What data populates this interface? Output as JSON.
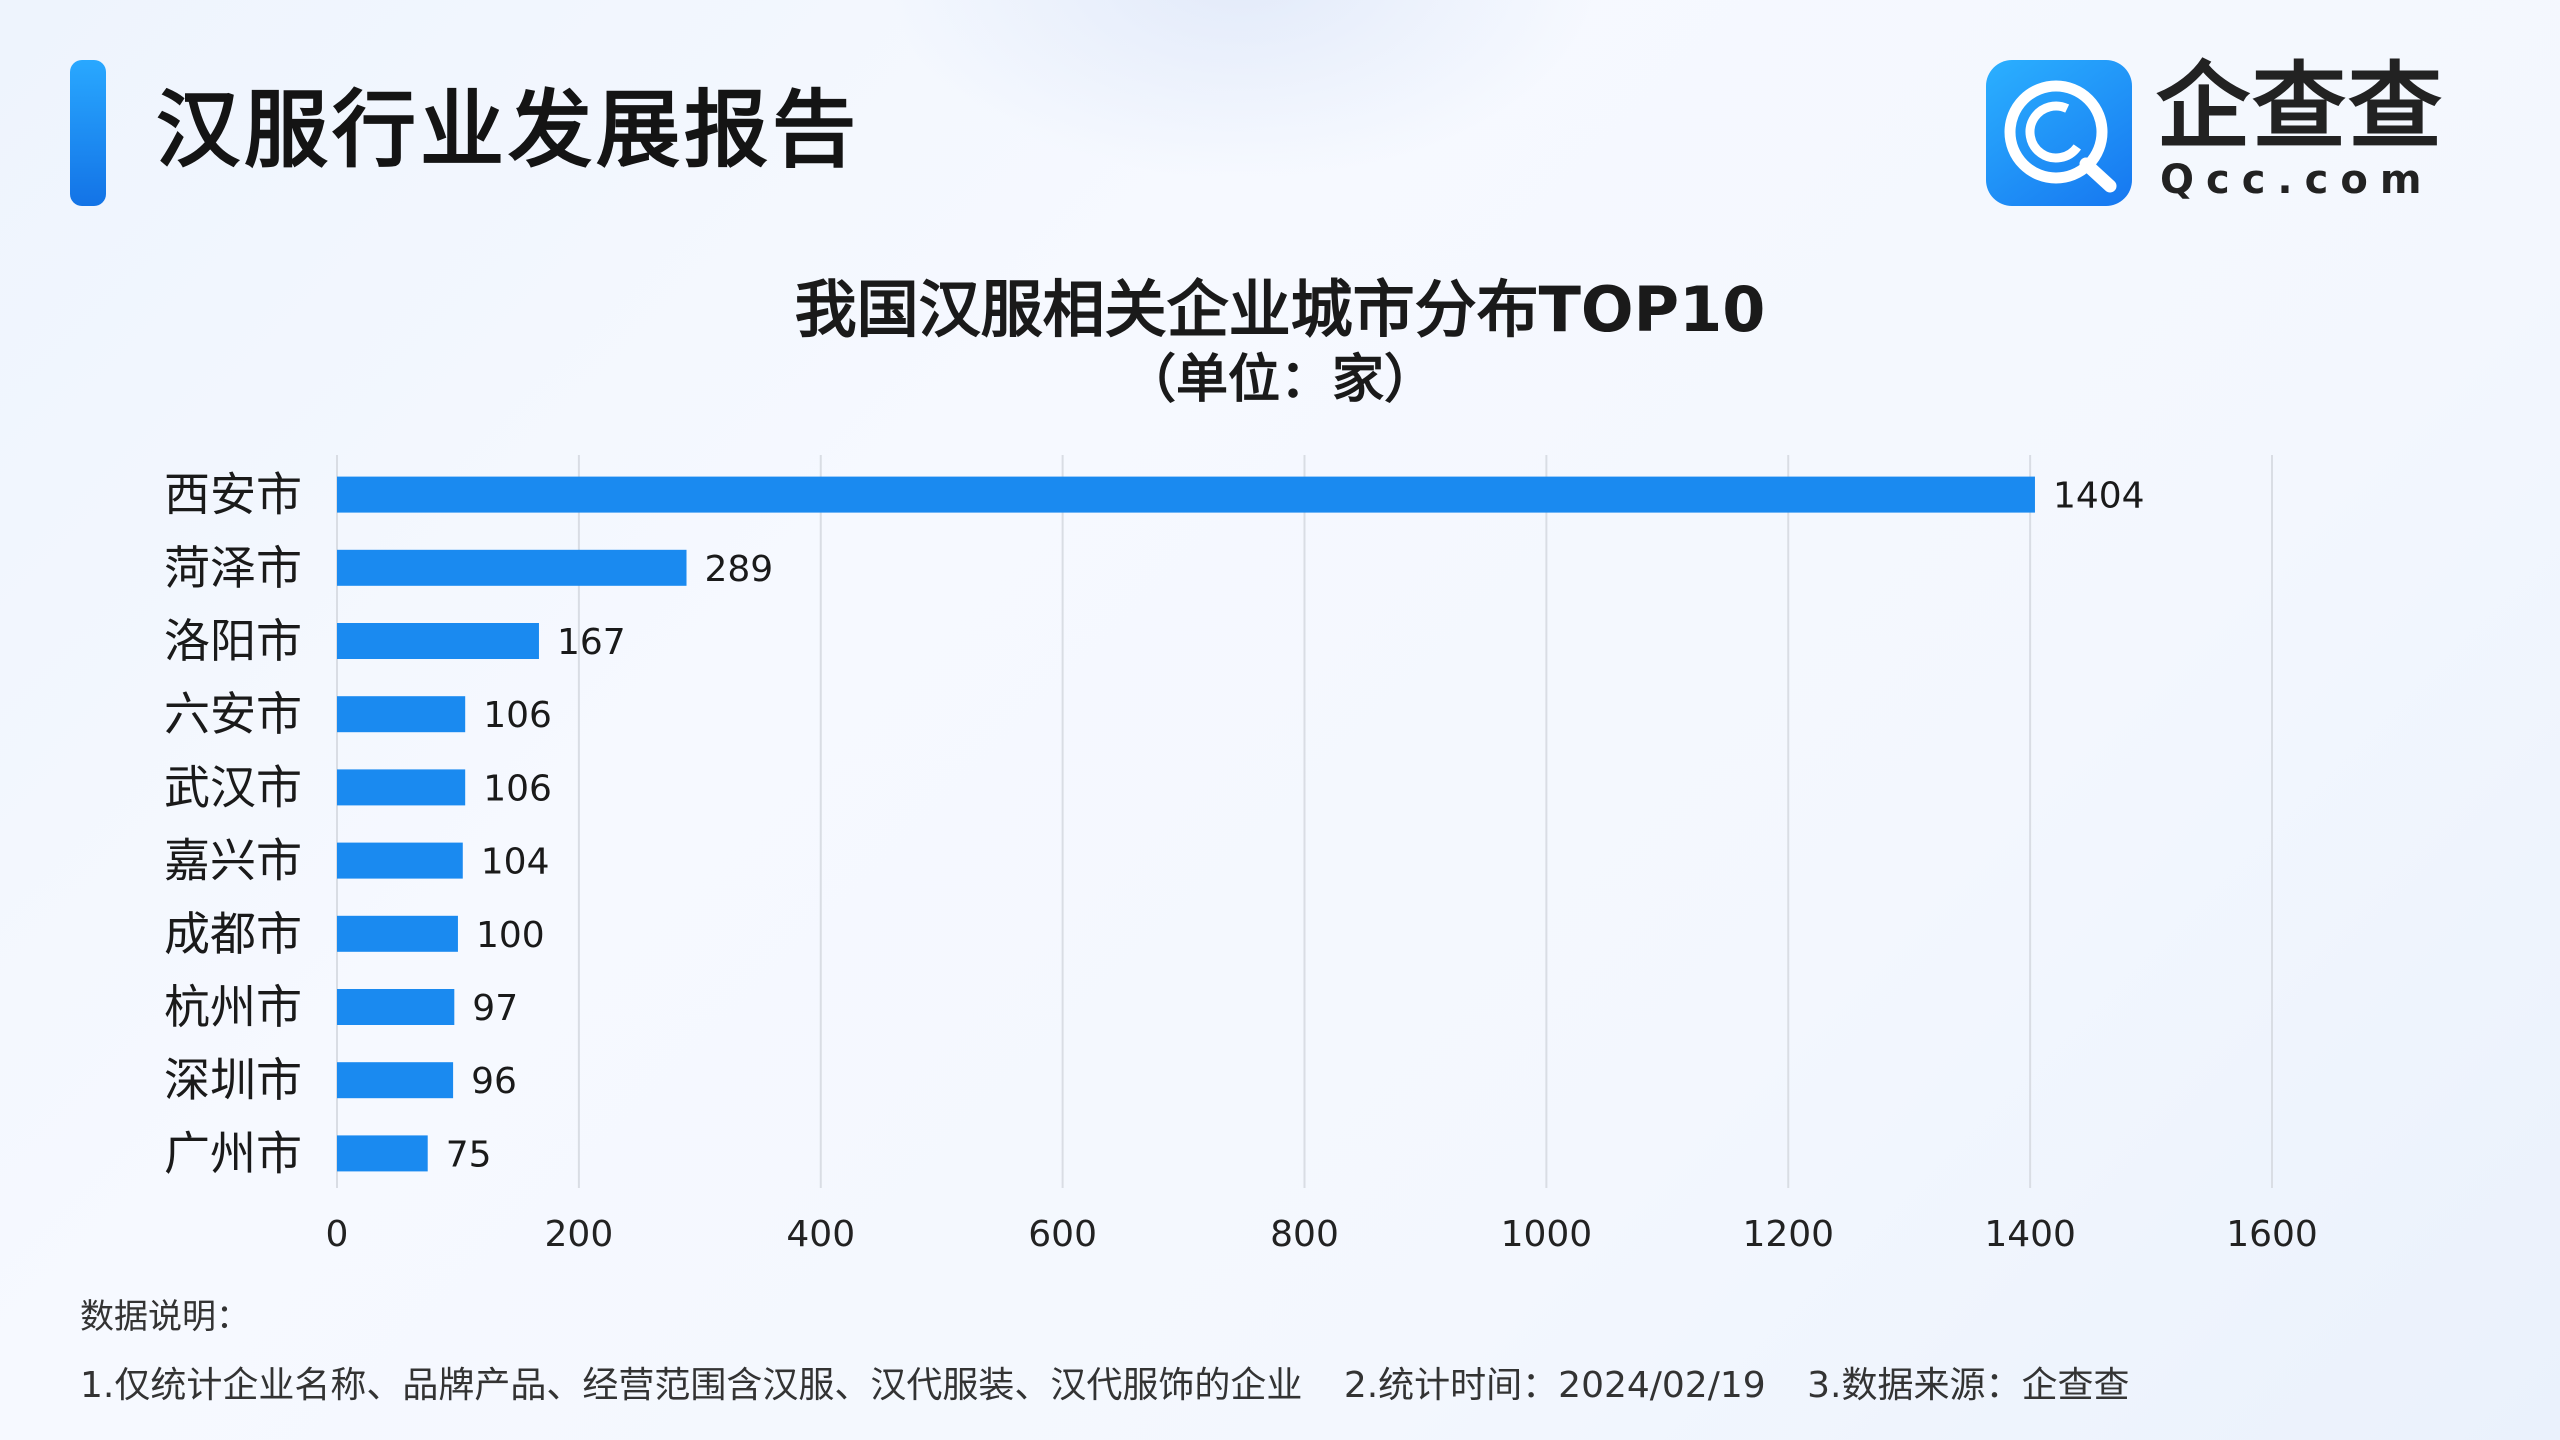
{
  "header": {
    "title": "汉服行业发展报告"
  },
  "brand": {
    "name": "企查查",
    "domain": "Qcc.com",
    "logo_icon": "qcc-magnifier-logo-icon",
    "color": "#1a84f0"
  },
  "chart_data": {
    "type": "bar",
    "orientation": "horizontal",
    "title": "我国汉服相关企业城市分布TOP10",
    "subtitle": "（单位：家）",
    "categories": [
      "西安市",
      "菏泽市",
      "洛阳市",
      "六安市",
      "武汉市",
      "嘉兴市",
      "成都市",
      "杭州市",
      "深圳市",
      "广州市"
    ],
    "values": [
      1404,
      289,
      167,
      106,
      106,
      104,
      100,
      97,
      96,
      75
    ],
    "xlim": [
      0,
      1600
    ],
    "xticks": [
      0,
      200,
      400,
      600,
      800,
      1000,
      1200,
      1400,
      1600
    ],
    "grid": "vertical",
    "data_labels": true,
    "bar_color": "#1a8af0",
    "xlabel": "",
    "ylabel": ""
  },
  "notes": {
    "heading": "数据说明：",
    "items": [
      "1.仅统计企业名称、品牌产品、经营范围含汉服、汉代服装、汉代服饰的企业",
      "2.统计时间：2024/02/19",
      "3.数据来源：企查查"
    ]
  }
}
